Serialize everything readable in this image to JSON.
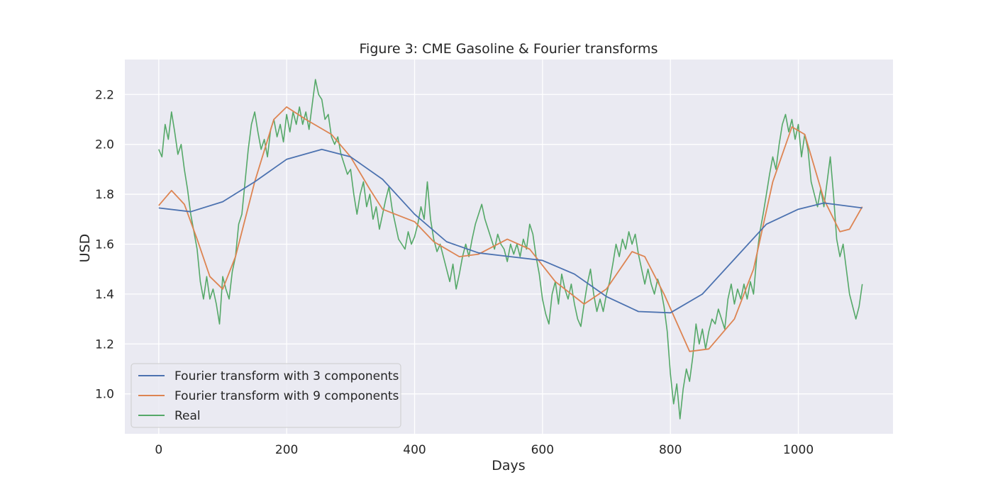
{
  "chart_data": {
    "type": "line",
    "title": "Figure 3: CME Gasoline & Fourier transforms",
    "xlabel": "Days",
    "ylabel": "USD",
    "xlim": [
      -53,
      1148
    ],
    "ylim": [
      0.84,
      2.34
    ],
    "xticks": [
      0,
      200,
      400,
      600,
      800,
      1000
    ],
    "yticks": [
      1.0,
      1.2,
      1.4,
      1.6,
      1.8,
      2.0,
      2.2
    ],
    "grid": true,
    "legend_position": "lower-left",
    "background_color": "#eaeaf2",
    "series": [
      {
        "name": "Fourier transform with 3 components",
        "color": "#4c72b0",
        "points": [
          [
            0,
            1.745
          ],
          [
            50,
            1.73
          ],
          [
            100,
            1.77
          ],
          [
            150,
            1.85
          ],
          [
            200,
            1.94
          ],
          [
            255,
            1.98
          ],
          [
            300,
            1.95
          ],
          [
            350,
            1.86
          ],
          [
            400,
            1.72
          ],
          [
            450,
            1.61
          ],
          [
            500,
            1.565
          ],
          [
            550,
            1.55
          ],
          [
            600,
            1.535
          ],
          [
            650,
            1.48
          ],
          [
            700,
            1.39
          ],
          [
            750,
            1.33
          ],
          [
            800,
            1.325
          ],
          [
            850,
            1.4
          ],
          [
            900,
            1.54
          ],
          [
            950,
            1.68
          ],
          [
            1000,
            1.74
          ],
          [
            1040,
            1.765
          ],
          [
            1100,
            1.745
          ]
        ]
      },
      {
        "name": "Fourier transform with 9 components",
        "color": "#dd8452",
        "points": [
          [
            0,
            1.755
          ],
          [
            20,
            1.815
          ],
          [
            40,
            1.76
          ],
          [
            60,
            1.62
          ],
          [
            80,
            1.47
          ],
          [
            100,
            1.42
          ],
          [
            120,
            1.55
          ],
          [
            150,
            1.85
          ],
          [
            180,
            2.1
          ],
          [
            200,
            2.15
          ],
          [
            230,
            2.1
          ],
          [
            270,
            2.04
          ],
          [
            300,
            1.95
          ],
          [
            330,
            1.82
          ],
          [
            350,
            1.74
          ],
          [
            400,
            1.69
          ],
          [
            430,
            1.61
          ],
          [
            470,
            1.55
          ],
          [
            500,
            1.56
          ],
          [
            545,
            1.62
          ],
          [
            580,
            1.58
          ],
          [
            620,
            1.45
          ],
          [
            665,
            1.36
          ],
          [
            700,
            1.42
          ],
          [
            740,
            1.57
          ],
          [
            760,
            1.55
          ],
          [
            790,
            1.4
          ],
          [
            830,
            1.17
          ],
          [
            860,
            1.18
          ],
          [
            900,
            1.3
          ],
          [
            930,
            1.5
          ],
          [
            960,
            1.85
          ],
          [
            990,
            2.07
          ],
          [
            1010,
            2.04
          ],
          [
            1040,
            1.78
          ],
          [
            1065,
            1.65
          ],
          [
            1080,
            1.66
          ],
          [
            1100,
            1.75
          ]
        ]
      },
      {
        "name": "Real",
        "color": "#55a868",
        "points": [
          [
            0,
            1.98
          ],
          [
            5,
            1.95
          ],
          [
            10,
            2.08
          ],
          [
            15,
            2.02
          ],
          [
            20,
            2.13
          ],
          [
            25,
            2.05
          ],
          [
            30,
            1.96
          ],
          [
            35,
            2.0
          ],
          [
            40,
            1.9
          ],
          [
            45,
            1.82
          ],
          [
            50,
            1.72
          ],
          [
            55,
            1.65
          ],
          [
            60,
            1.58
          ],
          [
            65,
            1.45
          ],
          [
            70,
            1.38
          ],
          [
            75,
            1.47
          ],
          [
            80,
            1.38
          ],
          [
            85,
            1.42
          ],
          [
            90,
            1.36
          ],
          [
            95,
            1.28
          ],
          [
            100,
            1.47
          ],
          [
            105,
            1.42
          ],
          [
            110,
            1.38
          ],
          [
            115,
            1.49
          ],
          [
            120,
            1.55
          ],
          [
            125,
            1.68
          ],
          [
            130,
            1.72
          ],
          [
            135,
            1.85
          ],
          [
            140,
            1.98
          ],
          [
            145,
            2.08
          ],
          [
            150,
            2.13
          ],
          [
            155,
            2.05
          ],
          [
            160,
            1.98
          ],
          [
            165,
            2.02
          ],
          [
            170,
            1.95
          ],
          [
            175,
            2.06
          ],
          [
            180,
            2.1
          ],
          [
            185,
            2.03
          ],
          [
            190,
            2.08
          ],
          [
            195,
            2.01
          ],
          [
            200,
            2.12
          ],
          [
            205,
            2.05
          ],
          [
            210,
            2.13
          ],
          [
            215,
            2.08
          ],
          [
            220,
            2.15
          ],
          [
            225,
            2.08
          ],
          [
            230,
            2.13
          ],
          [
            235,
            2.06
          ],
          [
            240,
            2.16
          ],
          [
            245,
            2.26
          ],
          [
            250,
            2.2
          ],
          [
            255,
            2.18
          ],
          [
            260,
            2.1
          ],
          [
            265,
            2.12
          ],
          [
            270,
            2.03
          ],
          [
            275,
            2.0
          ],
          [
            280,
            2.03
          ],
          [
            285,
            1.96
          ],
          [
            290,
            1.92
          ],
          [
            295,
            1.88
          ],
          [
            300,
            1.9
          ],
          [
            305,
            1.8
          ],
          [
            310,
            1.72
          ],
          [
            315,
            1.8
          ],
          [
            320,
            1.85
          ],
          [
            325,
            1.75
          ],
          [
            330,
            1.8
          ],
          [
            335,
            1.7
          ],
          [
            340,
            1.75
          ],
          [
            345,
            1.66
          ],
          [
            350,
            1.72
          ],
          [
            355,
            1.78
          ],
          [
            360,
            1.83
          ],
          [
            365,
            1.74
          ],
          [
            370,
            1.68
          ],
          [
            375,
            1.62
          ],
          [
            380,
            1.6
          ],
          [
            385,
            1.58
          ],
          [
            390,
            1.65
          ],
          [
            395,
            1.6
          ],
          [
            400,
            1.63
          ],
          [
            405,
            1.68
          ],
          [
            410,
            1.75
          ],
          [
            415,
            1.7
          ],
          [
            420,
            1.85
          ],
          [
            425,
            1.7
          ],
          [
            430,
            1.62
          ],
          [
            435,
            1.57
          ],
          [
            440,
            1.6
          ],
          [
            445,
            1.55
          ],
          [
            450,
            1.5
          ],
          [
            455,
            1.45
          ],
          [
            460,
            1.52
          ],
          [
            465,
            1.42
          ],
          [
            470,
            1.48
          ],
          [
            475,
            1.55
          ],
          [
            480,
            1.6
          ],
          [
            485,
            1.55
          ],
          [
            490,
            1.62
          ],
          [
            495,
            1.68
          ],
          [
            500,
            1.72
          ],
          [
            505,
            1.76
          ],
          [
            510,
            1.7
          ],
          [
            515,
            1.66
          ],
          [
            520,
            1.62
          ],
          [
            525,
            1.58
          ],
          [
            530,
            1.64
          ],
          [
            535,
            1.6
          ],
          [
            540,
            1.58
          ],
          [
            545,
            1.53
          ],
          [
            550,
            1.6
          ],
          [
            555,
            1.56
          ],
          [
            560,
            1.6
          ],
          [
            565,
            1.55
          ],
          [
            570,
            1.62
          ],
          [
            575,
            1.58
          ],
          [
            580,
            1.68
          ],
          [
            585,
            1.64
          ],
          [
            590,
            1.55
          ],
          [
            595,
            1.48
          ],
          [
            600,
            1.38
          ],
          [
            605,
            1.32
          ],
          [
            610,
            1.28
          ],
          [
            615,
            1.4
          ],
          [
            620,
            1.45
          ],
          [
            625,
            1.36
          ],
          [
            630,
            1.48
          ],
          [
            635,
            1.42
          ],
          [
            640,
            1.38
          ],
          [
            645,
            1.44
          ],
          [
            650,
            1.36
          ],
          [
            655,
            1.3
          ],
          [
            660,
            1.27
          ],
          [
            665,
            1.36
          ],
          [
            670,
            1.44
          ],
          [
            675,
            1.5
          ],
          [
            680,
            1.4
          ],
          [
            685,
            1.33
          ],
          [
            690,
            1.38
          ],
          [
            695,
            1.33
          ],
          [
            700,
            1.4
          ],
          [
            705,
            1.45
          ],
          [
            710,
            1.52
          ],
          [
            715,
            1.6
          ],
          [
            720,
            1.55
          ],
          [
            725,
            1.62
          ],
          [
            730,
            1.58
          ],
          [
            735,
            1.65
          ],
          [
            740,
            1.6
          ],
          [
            745,
            1.64
          ],
          [
            750,
            1.56
          ],
          [
            755,
            1.5
          ],
          [
            760,
            1.44
          ],
          [
            765,
            1.5
          ],
          [
            770,
            1.44
          ],
          [
            775,
            1.4
          ],
          [
            780,
            1.46
          ],
          [
            785,
            1.42
          ],
          [
            790,
            1.35
          ],
          [
            795,
            1.25
          ],
          [
            800,
            1.08
          ],
          [
            805,
            0.96
          ],
          [
            810,
            1.04
          ],
          [
            815,
            0.9
          ],
          [
            820,
            1.02
          ],
          [
            825,
            1.1
          ],
          [
            830,
            1.05
          ],
          [
            835,
            1.15
          ],
          [
            840,
            1.28
          ],
          [
            845,
            1.2
          ],
          [
            850,
            1.26
          ],
          [
            855,
            1.18
          ],
          [
            860,
            1.25
          ],
          [
            865,
            1.3
          ],
          [
            870,
            1.28
          ],
          [
            875,
            1.34
          ],
          [
            880,
            1.3
          ],
          [
            885,
            1.26
          ],
          [
            890,
            1.38
          ],
          [
            895,
            1.44
          ],
          [
            900,
            1.36
          ],
          [
            905,
            1.42
          ],
          [
            910,
            1.38
          ],
          [
            915,
            1.44
          ],
          [
            920,
            1.38
          ],
          [
            925,
            1.45
          ],
          [
            930,
            1.4
          ],
          [
            935,
            1.55
          ],
          [
            940,
            1.65
          ],
          [
            945,
            1.72
          ],
          [
            950,
            1.8
          ],
          [
            955,
            1.88
          ],
          [
            960,
            1.95
          ],
          [
            965,
            1.9
          ],
          [
            970,
            2.0
          ],
          [
            975,
            2.08
          ],
          [
            980,
            2.12
          ],
          [
            985,
            2.05
          ],
          [
            990,
            2.1
          ],
          [
            995,
            2.02
          ],
          [
            1000,
            2.08
          ],
          [
            1005,
            1.95
          ],
          [
            1010,
            2.04
          ],
          [
            1015,
            1.98
          ],
          [
            1020,
            1.85
          ],
          [
            1025,
            1.8
          ],
          [
            1030,
            1.75
          ],
          [
            1035,
            1.82
          ],
          [
            1040,
            1.75
          ],
          [
            1045,
            1.85
          ],
          [
            1050,
            1.95
          ],
          [
            1055,
            1.8
          ],
          [
            1060,
            1.62
          ],
          [
            1065,
            1.55
          ],
          [
            1070,
            1.6
          ],
          [
            1075,
            1.5
          ],
          [
            1080,
            1.4
          ],
          [
            1085,
            1.35
          ],
          [
            1090,
            1.3
          ],
          [
            1095,
            1.35
          ],
          [
            1100,
            1.44
          ]
        ]
      }
    ]
  }
}
